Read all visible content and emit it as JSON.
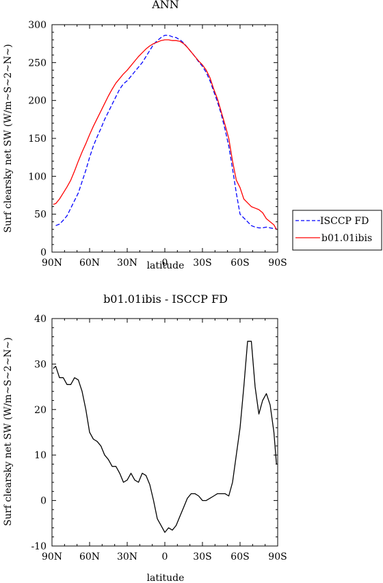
{
  "chart_data": [
    {
      "type": "line",
      "title": "ANN",
      "xlabel": "latitude",
      "ylabel": "Surf clearsky net SW (W/m~S~2~N~)",
      "xlim": [
        90,
        -90
      ],
      "ylim": [
        0,
        300
      ],
      "x_ticks": [
        {
          "value": 90,
          "label": "90N"
        },
        {
          "value": 60,
          "label": "60N"
        },
        {
          "value": 30,
          "label": "30N"
        },
        {
          "value": 0,
          "label": "0"
        },
        {
          "value": -30,
          "label": "30S"
        },
        {
          "value": -60,
          "label": "60S"
        },
        {
          "value": -90,
          "label": "90S"
        }
      ],
      "y_ticks": [
        0,
        50,
        100,
        150,
        200,
        250,
        300
      ],
      "grid": false,
      "legend_position": "right",
      "series": [
        {
          "name": "ISCCP FD",
          "color": "#0000ff",
          "dash": "dashed",
          "x": [
            87,
            84,
            81,
            78,
            75,
            72,
            69,
            66,
            63,
            60,
            57,
            54,
            51,
            48,
            45,
            42,
            39,
            36,
            33,
            30,
            27,
            24,
            21,
            18,
            15,
            12,
            9,
            6,
            3,
            0,
            -3,
            -6,
            -9,
            -12,
            -15,
            -18,
            -21,
            -24,
            -27,
            -30,
            -33,
            -36,
            -39,
            -42,
            -45,
            -48,
            -51,
            -54,
            -57,
            -60,
            -63,
            -66,
            -69,
            -72,
            -75,
            -78,
            -81,
            -84,
            -87,
            -89
          ],
          "values": [
            35,
            37,
            42,
            48,
            58,
            68,
            78,
            93,
            108,
            125,
            140,
            152,
            163,
            175,
            185,
            195,
            205,
            215,
            222,
            226,
            232,
            238,
            244,
            250,
            258,
            266,
            274,
            279,
            283,
            286,
            286,
            284,
            283,
            280,
            276,
            270,
            264,
            258,
            251,
            245,
            237,
            226,
            212,
            198,
            182,
            162,
            140,
            110,
            78,
            50,
            45,
            40,
            35,
            33,
            32,
            32,
            33,
            32,
            31,
            31
          ]
        },
        {
          "name": "b01.01ibis",
          "color": "#ff0000",
          "dash": "solid",
          "x": [
            89,
            87,
            84,
            81,
            78,
            75,
            72,
            69,
            66,
            63,
            60,
            57,
            54,
            51,
            48,
            45,
            42,
            39,
            36,
            33,
            30,
            27,
            24,
            21,
            18,
            15,
            12,
            9,
            6,
            3,
            0,
            -3,
            -6,
            -9,
            -12,
            -15,
            -18,
            -21,
            -24,
            -27,
            -30,
            -33,
            -36,
            -39,
            -42,
            -45,
            -48,
            -51,
            -54,
            -57,
            -60,
            -63,
            -66,
            -69,
            -72,
            -75,
            -78,
            -81,
            -84,
            -87,
            -89
          ],
          "values": [
            63,
            64,
            70,
            78,
            86,
            95,
            107,
            120,
            132,
            143,
            155,
            166,
            176,
            186,
            196,
            206,
            215,
            223,
            229,
            235,
            240,
            246,
            252,
            258,
            263,
            268,
            272,
            275,
            277,
            279,
            280,
            280,
            279,
            279,
            278,
            275,
            270,
            264,
            258,
            252,
            247,
            240,
            230,
            215,
            202,
            185,
            168,
            150,
            120,
            95,
            85,
            70,
            65,
            60,
            58,
            56,
            52,
            44,
            40,
            36,
            30
          ]
        }
      ]
    },
    {
      "type": "line",
      "title": "b01.01ibis - ISCCP FD",
      "xlabel": "latitude",
      "ylabel": "Surf clearsky net SW (W/m~S~2~N~)",
      "xlim": [
        90,
        -90
      ],
      "ylim": [
        -10,
        40
      ],
      "x_ticks": [
        {
          "value": 90,
          "label": "90N"
        },
        {
          "value": 60,
          "label": "60N"
        },
        {
          "value": 30,
          "label": "30N"
        },
        {
          "value": 0,
          "label": "0"
        },
        {
          "value": -30,
          "label": "30S"
        },
        {
          "value": -60,
          "label": "60S"
        },
        {
          "value": -90,
          "label": "90S"
        }
      ],
      "y_ticks": [
        -10,
        0,
        10,
        20,
        30,
        40
      ],
      "grid": false,
      "series": [
        {
          "color": "#000000",
          "dash": "solid",
          "x": [
            89,
            87,
            84,
            81,
            78,
            75,
            72,
            69,
            66,
            63,
            60,
            57,
            54,
            51,
            48,
            45,
            42,
            39,
            36,
            33,
            30,
            27,
            24,
            21,
            18,
            15,
            12,
            9,
            6,
            3,
            0,
            -3,
            -6,
            -9,
            -12,
            -15,
            -18,
            -21,
            -24,
            -27,
            -30,
            -33,
            -36,
            -39,
            -42,
            -45,
            -48,
            -51,
            -54,
            -57,
            -60,
            -63,
            -66,
            -69,
            -72,
            -75,
            -78,
            -81,
            -84,
            -87,
            -89
          ],
          "values": [
            29,
            29.5,
            27,
            27,
            25.5,
            25.5,
            27,
            26.5,
            24,
            20,
            15,
            13.5,
            13,
            12,
            10,
            9,
            7.5,
            7.5,
            6,
            4,
            4.5,
            6,
            4.5,
            4,
            6,
            5.5,
            3.5,
            0,
            -4,
            -5.5,
            -7,
            -6,
            -6.5,
            -5.5,
            -3.5,
            -1.5,
            0.5,
            1.5,
            1.5,
            1,
            0,
            0,
            0.5,
            1,
            1.5,
            1.5,
            1.5,
            1,
            4,
            10,
            16,
            25,
            35,
            35,
            25,
            19,
            22,
            23.5,
            21,
            15,
            8
          ]
        }
      ]
    }
  ]
}
